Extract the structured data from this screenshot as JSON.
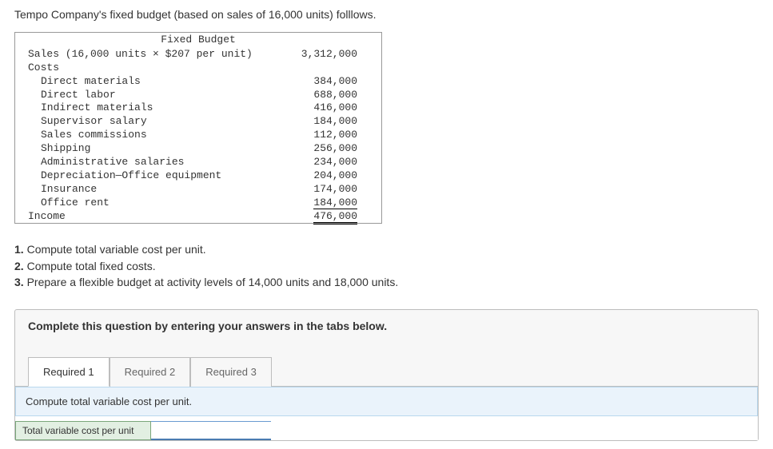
{
  "intro": "Tempo Company's fixed budget (based on sales of 16,000 units) folllows.",
  "budget": {
    "title": "Fixed Budget",
    "sales_label": "Sales (16,000 units × $207 per unit)",
    "sales_value": "3,312,000",
    "costs_label": "Costs",
    "rows": [
      {
        "label": "Direct materials",
        "value": "384,000"
      },
      {
        "label": "Direct labor",
        "value": "688,000"
      },
      {
        "label": "Indirect materials",
        "value": "416,000"
      },
      {
        "label": "Supervisor salary",
        "value": "184,000"
      },
      {
        "label": "Sales commissions",
        "value": "112,000"
      },
      {
        "label": "Shipping",
        "value": "256,000"
      },
      {
        "label": "Administrative salaries",
        "value": "234,000"
      },
      {
        "label": "Depreciation—Office equipment",
        "value": "204,000"
      },
      {
        "label": "Insurance",
        "value": "174,000"
      },
      {
        "label": "Office rent",
        "value": "184,000"
      }
    ],
    "income_label": "Income",
    "income_value": "476,000"
  },
  "questions": {
    "q1b": "1.",
    "q1": " Compute total variable cost per unit.",
    "q2b": "2.",
    "q2": " Compute total fixed costs.",
    "q3b": "3.",
    "q3": " Prepare a flexible budget at activity levels of 14,000 units and 18,000 units."
  },
  "answer": {
    "instruction": "Complete this question by entering your answers in the tabs below.",
    "tabs": [
      {
        "label": "Required 1"
      },
      {
        "label": "Required 2"
      },
      {
        "label": "Required 3"
      }
    ],
    "active_prompt": "Compute total variable cost per unit.",
    "row_label": "Total variable cost per unit",
    "input_value": ""
  }
}
